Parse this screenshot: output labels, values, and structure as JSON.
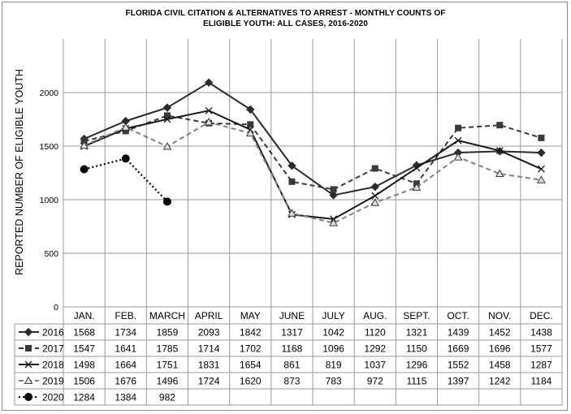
{
  "chart_data": {
    "type": "line",
    "title_line1": "FLORIDA CIVIL CITATION & ALTERNATIVES TO ARREST - MONTHLY COUNTS OF",
    "title_line2": "ELIGIBLE YOUTH:    ALL CASES, 2016-2020",
    "xlabel": "",
    "ylabel": "REPORTED NUMBER OF ELIGIBLE YOUTH",
    "ylim": [
      0,
      2500
    ],
    "yticks": [
      0,
      500,
      1000,
      1500,
      2000
    ],
    "grid": true,
    "legend_placement": "data table below",
    "categories": [
      "JAN.",
      "FEB.",
      "MARCH",
      "APRIL",
      "MAY",
      "JUNE",
      "JULY",
      "AUG.",
      "SEPT.",
      "OCT.",
      "NOV.",
      "DEC."
    ],
    "series": [
      {
        "name": "2016",
        "values": [
          1568,
          1734,
          1859,
          2093,
          1842,
          1317,
          1042,
          1120,
          1321,
          1439,
          1452,
          1438
        ],
        "color": "#2b2b2b",
        "marker": "diamond",
        "dash": "solid"
      },
      {
        "name": "2017",
        "values": [
          1547,
          1641,
          1785,
          1714,
          1702,
          1168,
          1096,
          1292,
          1150,
          1669,
          1696,
          1577
        ],
        "color": "#3a3a3a",
        "marker": "square",
        "dash": "dash"
      },
      {
        "name": "2018",
        "values": [
          1498,
          1664,
          1751,
          1831,
          1654,
          861,
          819,
          1037,
          1296,
          1552,
          1458,
          1287
        ],
        "color": "#1a1a1a",
        "marker": "x",
        "dash": "solid"
      },
      {
        "name": "2019",
        "values": [
          1506,
          1676,
          1496,
          1724,
          1620,
          873,
          783,
          972,
          1115,
          1397,
          1242,
          1184
        ],
        "color": "#808080",
        "marker": "triangle",
        "dash": "dash"
      },
      {
        "name": "2020",
        "values": [
          1284,
          1384,
          982,
          null,
          null,
          null,
          null,
          null,
          null,
          null,
          null,
          null
        ],
        "color": "#000000",
        "marker": "circle",
        "dash": "dot"
      }
    ]
  }
}
